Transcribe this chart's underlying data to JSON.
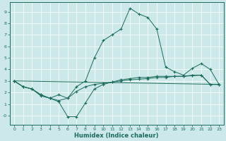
{
  "xlabel": "Humidex (Indice chaleur)",
  "background_color": "#cce8e8",
  "grid_color": "#ffffff",
  "line_color": "#1a6b5a",
  "xlim": [
    -0.5,
    23.5
  ],
  "ylim": [
    -0.8,
    9.8
  ],
  "line0_x": [
    0,
    1,
    2,
    3,
    4,
    5,
    6,
    7,
    8,
    9,
    10,
    11,
    12,
    13,
    14,
    15,
    16,
    17,
    18,
    19,
    20,
    21,
    22,
    23
  ],
  "line0_y": [
    3.0,
    2.5,
    2.3,
    1.7,
    1.5,
    1.3,
    1.5,
    2.5,
    3.0,
    5.0,
    6.5,
    7.0,
    7.5,
    9.3,
    8.8,
    8.5,
    7.5,
    4.2,
    3.8,
    3.5,
    4.1,
    4.5,
    4.0,
    2.7
  ],
  "line1_x": [
    0,
    1,
    2,
    3,
    4,
    5,
    6,
    7,
    8,
    9,
    10,
    11,
    12,
    13,
    14,
    15,
    16,
    17,
    18,
    19,
    20,
    21,
    22,
    23
  ],
  "line1_y": [
    3.0,
    2.5,
    2.3,
    1.8,
    1.5,
    1.2,
    -0.1,
    -0.1,
    1.1,
    2.3,
    2.7,
    2.9,
    3.1,
    3.2,
    3.3,
    3.3,
    3.4,
    3.4,
    3.4,
    3.4,
    3.5,
    3.5,
    2.7,
    2.7
  ],
  "line2_x": [
    0,
    1,
    2,
    3,
    4,
    5,
    6,
    7,
    8,
    9,
    10,
    11,
    12,
    13,
    14,
    15,
    16,
    17,
    18,
    19,
    20,
    21,
    22,
    23
  ],
  "line2_y": [
    3.0,
    2.5,
    2.3,
    1.8,
    1.5,
    1.8,
    1.5,
    2.1,
    2.5,
    2.7,
    2.8,
    2.9,
    3.0,
    3.1,
    3.15,
    3.2,
    3.3,
    3.3,
    3.4,
    3.4,
    3.45,
    3.5,
    2.7,
    2.7
  ],
  "line3_x": [
    0,
    23
  ],
  "line3_y": [
    3.0,
    2.7
  ]
}
